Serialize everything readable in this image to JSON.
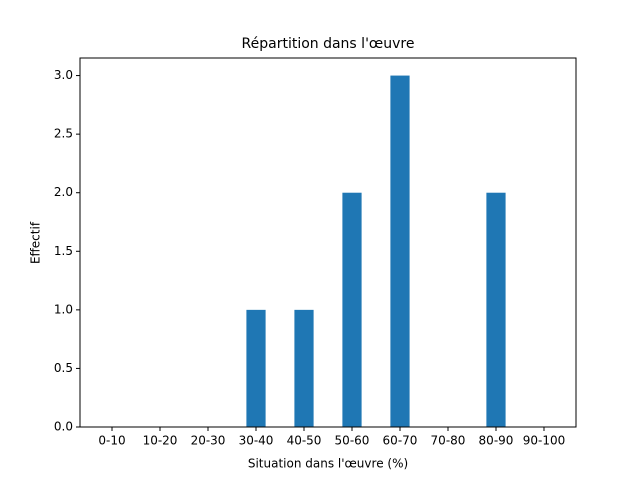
{
  "chart_data": {
    "type": "bar",
    "title": "Répartition dans l'œuvre",
    "x_label": "Situation dans l'œuvre (%)",
    "y_label": "Effectif",
    "categories": [
      "0-10",
      "10-20",
      "20-30",
      "30-40",
      "40-50",
      "50-60",
      "60-70",
      "70-80",
      "80-90",
      "90-100"
    ],
    "values": [
      0,
      0,
      0,
      1,
      1,
      2,
      3,
      0,
      2,
      0
    ],
    "color": "#1f77b4",
    "ylim": [
      0,
      3.15
    ],
    "yticks": [
      {
        "value": 0,
        "label": "0.0"
      },
      {
        "value": 0.5,
        "label": "0.5"
      },
      {
        "value": 1,
        "label": "1.0"
      },
      {
        "value": 1.5,
        "label": "1.5"
      },
      {
        "value": 2,
        "label": "2.0"
      },
      {
        "value": 2.5,
        "label": "2.5"
      },
      {
        "value": 3,
        "label": "3.0"
      }
    ]
  }
}
